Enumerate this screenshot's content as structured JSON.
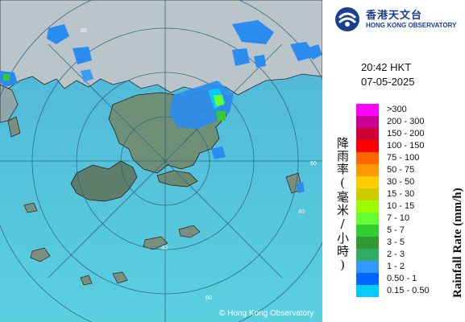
{
  "map": {
    "copyright": "© Hong Kong Observatory",
    "range_labels": [
      "20",
      "40",
      "60",
      "60",
      "40",
      "60"
    ]
  },
  "panel": {
    "logo_cn": "香港天文台",
    "logo_en": "HONG KONG OBSERVATORY",
    "time": "20:42 HKT",
    "date": "07-05-2025",
    "legend_title_cn": "降雨率(毫米/小時)",
    "legend_title_en": "Rainfall Rate (mm/h)",
    "legend": [
      {
        "label": ">300",
        "color": "#ff00ff"
      },
      {
        "label": "200 - 300",
        "color": "#cc0099"
      },
      {
        "label": "150 - 200",
        "color": "#cc0033"
      },
      {
        "label": "100 - 150",
        "color": "#ff0000"
      },
      {
        "label": "75 - 100",
        "color": "#ff6600"
      },
      {
        "label": "50 - 75",
        "color": "#ff9900"
      },
      {
        "label": "30 - 50",
        "color": "#ffcc00"
      },
      {
        "label": "15 - 30",
        "color": "#cccc00"
      },
      {
        "label": "10 - 15",
        "color": "#99ff00"
      },
      {
        "label": "7 - 10",
        "color": "#66ff33"
      },
      {
        "label": "5 - 7",
        "color": "#33cc33"
      },
      {
        "label": "3 - 5",
        "color": "#339933"
      },
      {
        "label": "2 - 3",
        "color": "#33aa66"
      },
      {
        "label": "1 - 2",
        "color": "#3399ff"
      },
      {
        "label": "0.50 - 1",
        "color": "#0066ff"
      },
      {
        "label": "0.15 - 0.50",
        "color": "#00ccff"
      }
    ]
  }
}
